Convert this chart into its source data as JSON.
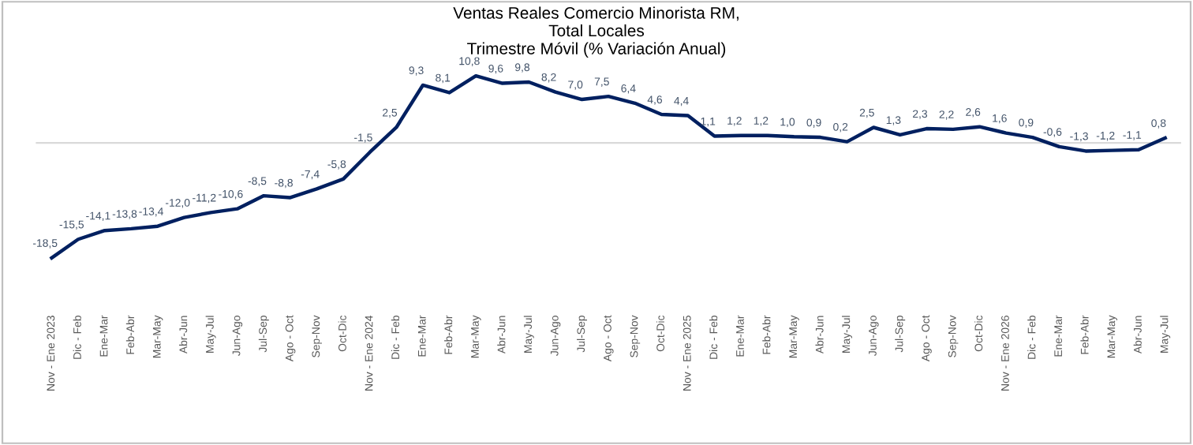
{
  "chart_data": {
    "type": "line",
    "title": "Ventas Reales Comercio Minorista RM,\nTotal Locales\nTrimestre Móvil (% Variación Anual)",
    "categories": [
      "Nov - Ene 2023",
      "Dic - Feb",
      "Ene-Mar",
      "Feb-Abr",
      "Mar-May",
      "Abr-Jun",
      "May-Jul",
      "Jun-Ago",
      "Jul-Sep",
      "Ago - Oct",
      "Sep-Nov",
      "Oct-Dic",
      "Nov - Ene 2024",
      "Dic - Feb",
      "Ene-Mar",
      "Feb-Abr",
      "Mar-May",
      "Abr-Jun",
      "May-Jul",
      "Jun-Ago",
      "Jul-Sep",
      "Ago - Oct",
      "Sep-Nov",
      "Oct-Dic",
      "Nov - Ene 2025",
      "Dic - Feb",
      "Ene-Mar",
      "Feb-Abr",
      "Mar-May",
      "Abr-Jun",
      "May-Jul",
      "Jun-Ago",
      "Jul-Sep",
      "Ago - Oct",
      "Sep-Nov",
      "Oct-Dic",
      "Nov - Ene 2026",
      "Dic - Feb",
      "Ene-Mar",
      "Feb-Abr",
      "Mar-May",
      "Abr-Jun",
      "May-Jul"
    ],
    "series": [
      {
        "color": "#002060",
        "values": [
          -18.5,
          -15.5,
          -14.1,
          -13.8,
          -13.4,
          -12.0,
          -11.2,
          -10.6,
          -8.5,
          -8.8,
          -7.4,
          -5.8,
          -1.5,
          2.5,
          9.3,
          8.1,
          10.8,
          9.6,
          9.8,
          8.2,
          7.0,
          7.5,
          6.4,
          4.6,
          4.4,
          1.1,
          1.2,
          1.2,
          1.0,
          0.9,
          0.2,
          2.5,
          1.3,
          2.3,
          2.2,
          2.6,
          1.6,
          0.9,
          -0.6,
          -1.3,
          -1.2,
          -1.1,
          0.8
        ],
        "value_labels": [
          "-18,5",
          "-15,5",
          "-14,1",
          "-13,8",
          "-13,4",
          "-12,0",
          "-11,2",
          "-10,6",
          "-8,5",
          "-8,8",
          "-7,4",
          "-5,8",
          "-1,5",
          "2,5",
          "9,3",
          "8,1",
          "10,8",
          "9,6",
          "9,8",
          "8,2",
          "7,0",
          "7,5",
          "6,4",
          "4,6",
          "4,4",
          "1,1",
          "1,2",
          "1,2",
          "1,0",
          "0,9",
          "0,2",
          "2,5",
          "1,3",
          "2,3",
          "2,2",
          "2,6",
          "1,6",
          "0,9",
          "-0,6",
          "-1,3",
          "-1,2",
          "-1,1",
          "0,8"
        ]
      }
    ],
    "grid": false,
    "legend": false,
    "marker": "none",
    "line_style": "solid"
  }
}
